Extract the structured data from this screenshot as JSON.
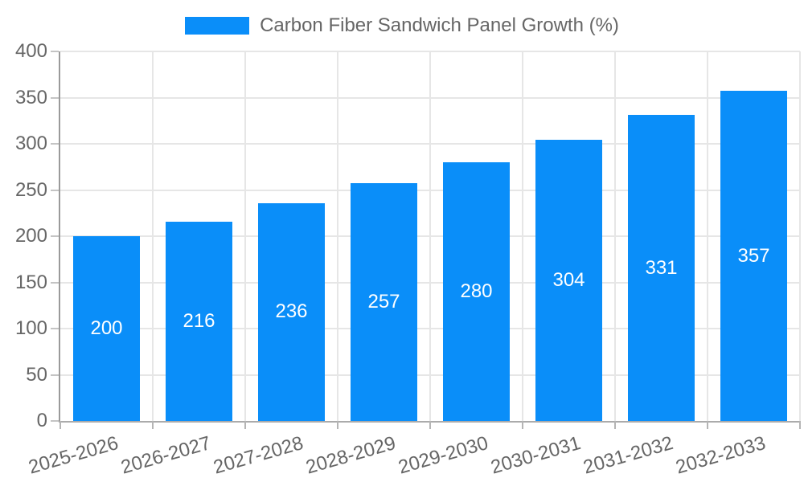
{
  "legend": {
    "label": "Carbon Fiber Sandwich Panel Growth (%)",
    "swatch_color": "#0a8ef9"
  },
  "chart_data": {
    "type": "bar",
    "title": "Carbon Fiber Sandwich Panel Growth (%)",
    "categories": [
      "2025-2026",
      "2026-2027",
      "2027-2028",
      "2028-2029",
      "2029-2030",
      "2030-2031",
      "2031-2032",
      "2032-2033"
    ],
    "values": [
      200,
      216,
      236,
      257,
      280,
      304,
      331,
      357
    ],
    "xlabel": "",
    "ylabel": "",
    "ylim": [
      0,
      400
    ],
    "yticks": [
      0,
      50,
      100,
      150,
      200,
      250,
      300,
      350,
      400
    ],
    "grid": true,
    "legend_position": "top",
    "bar_color": "#0a8ef9",
    "value_label_color": "#ffffff",
    "tick_label_color": "#666666",
    "grid_color": "#e6e6e6",
    "axis_color": "#9a9a9a"
  }
}
